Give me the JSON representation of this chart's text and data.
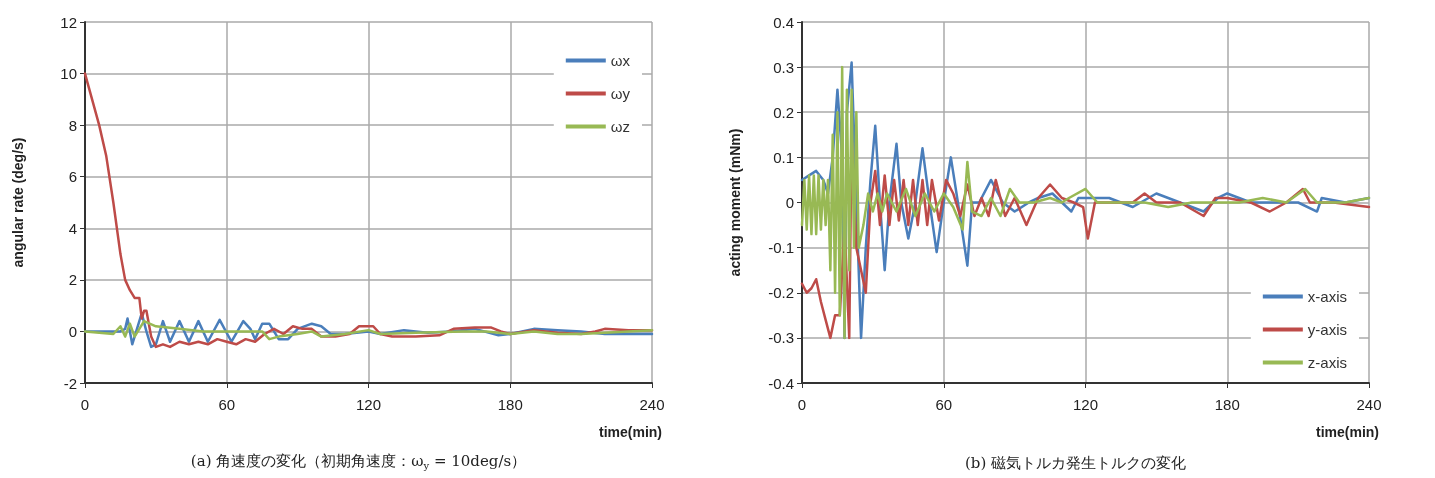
{
  "chart_data": [
    {
      "type": "line",
      "xlabel": "time(min)",
      "ylabel": "angular rate (deg/s)",
      "annotations": [
        "(a) 角速度の変化（初期角速度：ω$_{y}$ = 10deg/s）"
      ],
      "xlim": [
        0,
        240
      ],
      "xticks": [
        0,
        60,
        120,
        180,
        240
      ],
      "ylim": [
        -2,
        12
      ],
      "yticks": [
        -2,
        0,
        2,
        4,
        6,
        8,
        10,
        12
      ],
      "grid": true,
      "legend": "top right",
      "marker": "none",
      "line_style": "solid",
      "series": [
        {
          "name": "ωx",
          "color": "#4a7ebb",
          "x": [
            0,
            15,
            17,
            18,
            20,
            22,
            24,
            26,
            28,
            30,
            33,
            36,
            40,
            44,
            48,
            52,
            57,
            62,
            67,
            70,
            72,
            75,
            78,
            82,
            86,
            90,
            96,
            100,
            104,
            110,
            120,
            125,
            135,
            145,
            155,
            165,
            175,
            180,
            190,
            200,
            210,
            220,
            230,
            240
          ],
          "values": [
            0,
            0,
            0.1,
            0.5,
            -0.5,
            0.1,
            0.7,
            0,
            -0.6,
            -0.5,
            0.4,
            -0.4,
            0.4,
            -0.4,
            0.4,
            -0.4,
            0.45,
            -0.4,
            0.4,
            0.1,
            -0.3,
            0.3,
            0.3,
            -0.3,
            -0.3,
            0.1,
            0.3,
            0.2,
            -0.1,
            -0.1,
            0,
            -0.1,
            0.05,
            -0.05,
            0,
            0.1,
            -0.15,
            -0.1,
            0.1,
            0.05,
            0,
            -0.1,
            -0.1,
            -0.1
          ]
        },
        {
          "name": "ωy",
          "color": "#be4b48",
          "x": [
            0,
            3,
            6,
            9,
            12,
            15,
            17,
            19,
            21,
            23,
            24,
            25,
            26,
            28,
            30,
            33,
            36,
            40,
            44,
            48,
            52,
            56,
            60,
            64,
            68,
            72,
            76,
            80,
            84,
            88,
            92,
            96,
            100,
            106,
            112,
            116,
            122,
            125,
            130,
            140,
            150,
            156,
            165,
            172,
            176,
            180,
            190,
            200,
            210,
            216,
            220,
            230,
            240
          ],
          "values": [
            10,
            9,
            8,
            6.8,
            5,
            3,
            2,
            1.6,
            1.3,
            1.3,
            0.5,
            0.8,
            0.8,
            -0.2,
            -0.6,
            -0.5,
            -0.6,
            -0.4,
            -0.5,
            -0.4,
            -0.5,
            -0.3,
            -0.4,
            -0.5,
            -0.3,
            -0.4,
            -0.1,
            0.1,
            -0.1,
            0.2,
            0.1,
            0.1,
            -0.2,
            -0.2,
            -0.1,
            0.2,
            0.2,
            -0.1,
            -0.2,
            -0.2,
            -0.15,
            0.1,
            0.15,
            0.15,
            0,
            -0.1,
            0.05,
            -0.05,
            -0.1,
            0,
            0.1,
            0.05,
            0.05
          ]
        },
        {
          "name": "ωz",
          "color": "#98b954",
          "x": [
            0,
            12,
            15,
            17,
            19,
            21,
            25,
            30,
            40,
            50,
            60,
            70,
            75,
            78,
            82,
            90,
            96,
            100,
            110,
            120,
            125,
            140,
            160,
            170,
            180,
            190,
            200,
            210,
            220,
            240
          ],
          "values": [
            0,
            -0.1,
            0.2,
            -0.2,
            0.3,
            -0.2,
            0.4,
            0.2,
            0.1,
            0,
            0,
            0,
            0,
            -0.3,
            -0.2,
            -0.1,
            0,
            -0.2,
            -0.1,
            0.05,
            -0.1,
            -0.05,
            0,
            0,
            -0.1,
            0,
            -0.1,
            -0.1,
            -0.05,
            0.05
          ]
        }
      ]
    },
    {
      "type": "line",
      "xlabel": "time(min)",
      "ylabel": "acting moment (mNm)",
      "annotations": [
        "(b) 磁気トルカ発生トルクの変化"
      ],
      "xlim": [
        0,
        240
      ],
      "xticks": [
        0,
        60,
        120,
        180,
        240
      ],
      "ylim": [
        -0.4,
        0.4
      ],
      "yticks": [
        -0.4,
        -0.3,
        -0.2,
        -0.1,
        0,
        0.1,
        0.2,
        0.3,
        0.4
      ],
      "grid": true,
      "legend": "bottom right",
      "marker": "none",
      "line_style": "solid",
      "series": [
        {
          "name": "x-axis",
          "color": "#4a7ebb",
          "x": [
            0,
            3,
            6,
            9,
            11,
            13,
            15,
            17,
            18,
            19,
            21,
            23,
            25,
            27,
            29,
            31,
            33,
            35,
            37,
            40,
            42,
            45,
            48,
            51,
            54,
            57,
            60,
            63,
            66,
            70,
            72,
            75,
            80,
            85,
            90,
            96,
            100,
            106,
            110,
            114,
            117,
            125,
            130,
            140,
            150,
            160,
            170,
            176,
            180,
            190,
            200,
            210,
            218,
            220,
            230,
            240
          ],
          "values": [
            0.05,
            0.06,
            0.07,
            0.05,
            0.02,
            0.1,
            0.25,
            0.1,
            -0.3,
            0.2,
            0.31,
            0,
            -0.3,
            -0.1,
            0.05,
            0.17,
            0,
            -0.15,
            0,
            0.13,
            0,
            -0.08,
            0,
            0.12,
            0,
            -0.11,
            0,
            0.1,
            0,
            -0.14,
            0,
            0,
            0.05,
            0,
            -0.02,
            0,
            0.01,
            0.02,
            0,
            -0.02,
            0.01,
            0.01,
            0.01,
            -0.01,
            0.02,
            0,
            -0.02,
            0.01,
            0.02,
            0,
            0,
            0,
            -0.02,
            0.01,
            0,
            0.01
          ]
        },
        {
          "name": "y-axis",
          "color": "#be4b48",
          "x": [
            0,
            2,
            4,
            6,
            8,
            10,
            12,
            14,
            16,
            18,
            20,
            21,
            23,
            25,
            27,
            29,
            31,
            33,
            35,
            37,
            39,
            41,
            43,
            45,
            47,
            49,
            51,
            53,
            55,
            58,
            61,
            64,
            67,
            70,
            73,
            76,
            79,
            82,
            86,
            90,
            95,
            100,
            105,
            110,
            115,
            119,
            121,
            124,
            130,
            140,
            145,
            150,
            160,
            170,
            175,
            180,
            190,
            198,
            205,
            212,
            215,
            225,
            240
          ],
          "values": [
            -0.18,
            -0.2,
            -0.19,
            -0.17,
            -0.22,
            -0.26,
            -0.3,
            -0.25,
            -0.25,
            -0.05,
            -0.3,
            0.15,
            -0.1,
            -0.15,
            -0.2,
            0,
            0.07,
            -0.05,
            0.06,
            -0.05,
            0.05,
            -0.04,
            0.05,
            -0.05,
            0.05,
            -0.05,
            0.05,
            -0.05,
            0.05,
            -0.04,
            0.05,
            0.02,
            -0.03,
            0.04,
            -0.03,
            0.01,
            -0.03,
            0.05,
            -0.03,
            0.01,
            -0.05,
            0.01,
            0.04,
            0.01,
            0,
            -0.01,
            -0.08,
            0,
            0,
            0,
            0.02,
            0,
            0,
            -0.03,
            0.01,
            0.01,
            0,
            -0.02,
            0,
            0.03,
            0,
            0,
            -0.01
          ]
        },
        {
          "name": "z-axis",
          "color": "#98b954",
          "x": [
            0,
            1,
            2,
            3,
            4,
            5,
            6,
            7,
            8,
            9,
            10,
            11,
            12,
            13,
            14,
            15,
            16,
            17,
            18,
            19,
            20,
            21,
            22,
            23,
            24,
            26,
            28,
            30,
            32,
            34,
            36,
            40,
            44,
            48,
            52,
            56,
            60,
            64,
            68,
            70,
            72,
            76,
            80,
            84,
            88,
            92,
            98,
            105,
            110,
            113,
            120,
            125,
            135,
            145,
            155,
            165,
            175,
            185,
            195,
            205,
            213,
            218,
            230,
            240
          ],
          "values": [
            -0.05,
            0.05,
            -0.06,
            0.06,
            -0.07,
            0.06,
            -0.07,
            0.06,
            -0.06,
            0.05,
            -0.05,
            0.05,
            -0.15,
            0.15,
            -0.2,
            0.2,
            -0.25,
            0.3,
            -0.3,
            0.25,
            -0.15,
            0.25,
            -0.1,
            0.2,
            -0.1,
            -0.05,
            0.02,
            -0.02,
            0.02,
            -0.02,
            0.02,
            -0.02,
            0.03,
            -0.03,
            0.02,
            -0.02,
            0.02,
            -0.01,
            -0.06,
            0.09,
            -0.02,
            -0.03,
            0.01,
            -0.03,
            0.03,
            0,
            0,
            0.01,
            0,
            0.01,
            0.03,
            0,
            0,
            0,
            -0.01,
            0,
            0,
            0,
            0.01,
            0,
            0.03,
            0,
            0,
            0.01
          ]
        }
      ]
    }
  ]
}
